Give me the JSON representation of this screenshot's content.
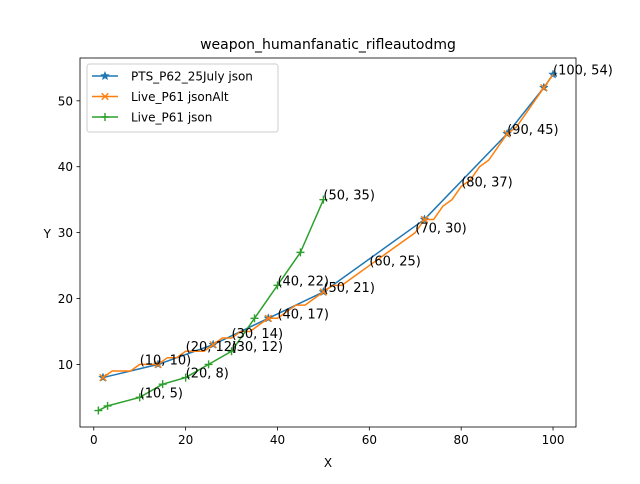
{
  "chart_data": {
    "type": "line",
    "title": "weapon_humanfanatic_rifleautodmg",
    "xlabel": "X",
    "ylabel": "Y",
    "xlim": [
      -3.0,
      105.0
    ],
    "ylim": [
      0.5,
      56.5
    ],
    "xticks": [
      0,
      20,
      40,
      60,
      80,
      100
    ],
    "yticks": [
      10,
      20,
      30,
      40,
      50
    ],
    "legend_position": "upper-left",
    "grid": false,
    "series": [
      {
        "name": "PTS_P62_25July json",
        "color": "#1f77b4",
        "marker": "star",
        "x": [
          2,
          14,
          26,
          38,
          50,
          72,
          90,
          98,
          100
        ],
        "y": [
          8,
          10,
          13,
          17,
          21,
          32,
          45,
          52,
          54
        ]
      },
      {
        "name": "Live_P61 jsonAlt",
        "color": "#ff7f0e",
        "marker": "x",
        "x": [
          2,
          4,
          6,
          8,
          10,
          12,
          14,
          16,
          18,
          20,
          22,
          24,
          26,
          28,
          30,
          32,
          34,
          36,
          38,
          40,
          42,
          44,
          46,
          48,
          50,
          52,
          54,
          56,
          58,
          60,
          62,
          64,
          66,
          68,
          70,
          72,
          74,
          76,
          78,
          80,
          82,
          84,
          86,
          88,
          90,
          92,
          94,
          96,
          98,
          100
        ],
        "y": [
          8,
          9,
          9,
          9,
          10,
          10,
          10,
          11,
          11,
          12,
          12,
          12,
          13,
          14,
          14,
          15,
          15,
          16,
          17,
          17,
          18,
          19,
          19,
          20,
          21,
          22,
          22,
          23,
          24,
          25,
          26,
          27,
          28,
          29,
          30,
          32,
          32,
          34,
          35,
          37,
          38,
          40,
          41,
          43,
          45,
          46,
          48,
          50,
          52,
          54
        ]
      },
      {
        "name": "Live_P61 json",
        "color": "#2ca02c",
        "marker": "plus",
        "x": [
          1,
          3,
          10,
          15,
          20,
          25,
          30,
          35,
          40,
          45,
          50
        ],
        "y": [
          3,
          3.7,
          5,
          7,
          8,
          10,
          12,
          17,
          22,
          27,
          35
        ]
      }
    ],
    "annotations": [
      {
        "text": "(10, 10)",
        "x": 10,
        "y": 10
      },
      {
        "text": "(20, 12)",
        "x": 20,
        "y": 12
      },
      {
        "text": "(30, 14)",
        "x": 30,
        "y": 14
      },
      {
        "text": "(40, 17)",
        "x": 40,
        "y": 17
      },
      {
        "text": "(50, 21)",
        "x": 50,
        "y": 21
      },
      {
        "text": "(60, 25)",
        "x": 60,
        "y": 25
      },
      {
        "text": "(70, 30)",
        "x": 70,
        "y": 30
      },
      {
        "text": "(80, 37)",
        "x": 80,
        "y": 37
      },
      {
        "text": "(90, 45)",
        "x": 90,
        "y": 45
      },
      {
        "text": "(100, 54)",
        "x": 100,
        "y": 54
      },
      {
        "text": "(10, 5)",
        "x": 10,
        "y": 5
      },
      {
        "text": "(20, 8)",
        "x": 20,
        "y": 8
      },
      {
        "text": "(30, 12)",
        "x": 30,
        "y": 12
      },
      {
        "text": "(40, 22)",
        "x": 40,
        "y": 22
      },
      {
        "text": "(50, 35)",
        "x": 50,
        "y": 35
      }
    ]
  }
}
